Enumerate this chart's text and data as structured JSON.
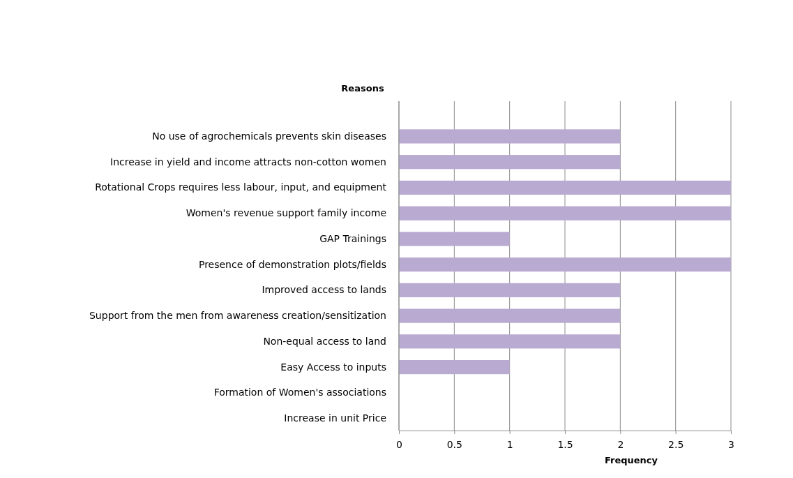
{
  "chart_data": {
    "type": "bar",
    "orientation": "horizontal",
    "ylabel": "Reasons",
    "xlabel": "Frequency",
    "categories": [
      "No use of agrochemicals prevents skin diseases",
      "Increase in yield and income attracts non-cotton women",
      "Rotational Crops requires less labour, input, and equipment",
      "Women's revenue support family income",
      "GAP Trainings",
      "Presence of demonstration plots/fields",
      "Improved access to lands",
      "Support from the men from awareness creation/sensitization",
      "Non-equal access to land",
      "Easy Access to inputs",
      "Formation of Women's associations",
      "Increase in unit Price"
    ],
    "values": [
      2,
      2,
      3,
      3,
      1,
      3,
      2,
      2,
      2,
      1,
      0,
      0
    ],
    "color": "#b9aad2",
    "xlim": [
      0,
      3
    ],
    "xticks": [
      0,
      0.5,
      1,
      1.5,
      2,
      2.5,
      3
    ],
    "grid": "x"
  }
}
